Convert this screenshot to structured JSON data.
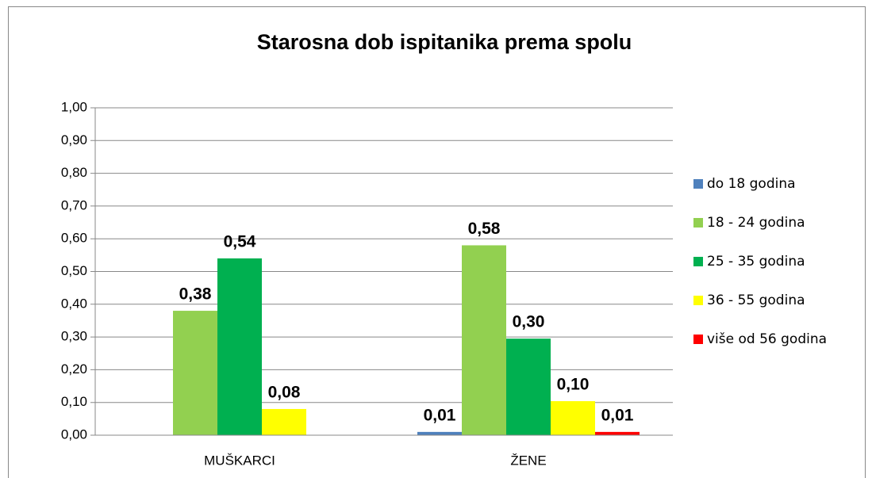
{
  "chart_data": {
    "type": "bar",
    "title": "Starosna dob ispitanika prema spolu",
    "categories": [
      "MUŠKARCI",
      "ŽENE"
    ],
    "series": [
      {
        "name": "do 18 godina",
        "color": "#4f81bd",
        "values": [
          null,
          0.01
        ],
        "value_labels": [
          null,
          "0,01"
        ]
      },
      {
        "name": "18 - 24 godina",
        "color": "#92d050",
        "values": [
          0.38,
          0.58
        ],
        "value_labels": [
          "0,38",
          "0,58"
        ]
      },
      {
        "name": "25 - 35 godina",
        "color": "#00b050",
        "values": [
          0.54,
          0.295
        ],
        "value_labels": [
          "0,54",
          "0,30"
        ]
      },
      {
        "name": "36 - 55 godina",
        "color": "#ffff00",
        "values": [
          0.08,
          0.104
        ],
        "value_labels": [
          "0,08",
          "0,10"
        ]
      },
      {
        "name": "više od 56 godina",
        "color": "#ff0000",
        "values": [
          null,
          0.01
        ],
        "value_labels": [
          null,
          "0,01"
        ]
      }
    ],
    "ylim": [
      0,
      1
    ],
    "yticks": [
      {
        "value": 0,
        "label": "0,00"
      },
      {
        "value": 0.1,
        "label": "0,10"
      },
      {
        "value": 0.2,
        "label": "0,20"
      },
      {
        "value": 0.3,
        "label": "0,30"
      },
      {
        "value": 0.4,
        "label": "0,40"
      },
      {
        "value": 0.5,
        "label": "0,50"
      },
      {
        "value": 0.6,
        "label": "0,60"
      },
      {
        "value": 0.7,
        "label": "0,70"
      },
      {
        "value": 0.8,
        "label": "0,80"
      },
      {
        "value": 0.9,
        "label": "0,90"
      },
      {
        "value": 1,
        "label": "1,00"
      }
    ],
    "grid": true,
    "legend": "right"
  }
}
